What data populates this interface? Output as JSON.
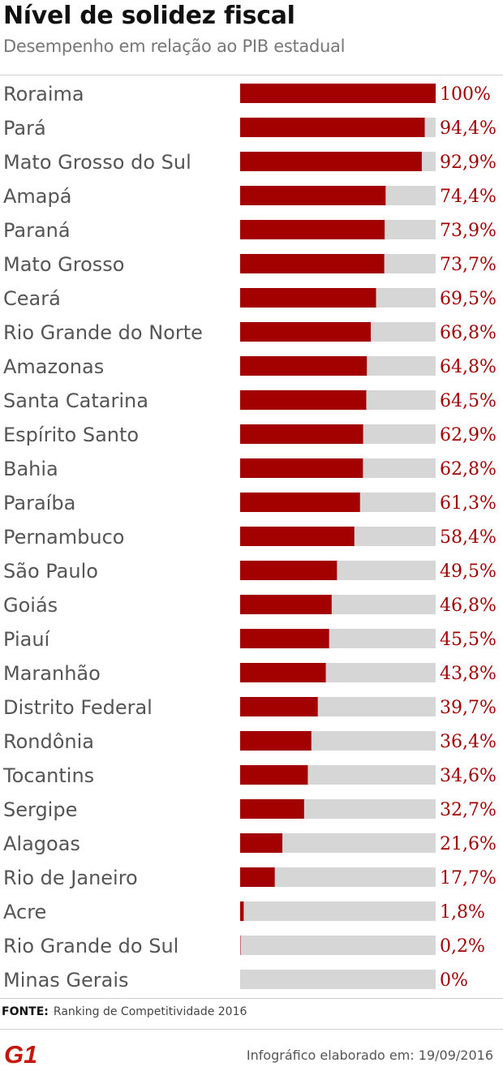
{
  "header": {
    "title": "Nível de solidez fiscal",
    "subtitle": "Desempenho em relação ao PIB estadual"
  },
  "colors": {
    "bar_fill": "#a30000",
    "bar_track": "#d6d6d6",
    "value_text": "#a30000",
    "label_text": "#555555"
  },
  "chart_data": {
    "type": "bar",
    "orientation": "horizontal",
    "title": "Nível de solidez fiscal",
    "subtitle": "Desempenho em relação ao PIB estadual",
    "xlim": [
      0,
      100
    ],
    "grid": false,
    "categories": [
      "Roraima",
      "Pará",
      "Mato Grosso do Sul",
      "Amapá",
      "Paraná",
      "Mato Grosso",
      "Ceará",
      "Rio Grande do Norte",
      "Amazonas",
      "Santa Catarina",
      "Espírito Santo",
      "Bahia",
      "Paraíba",
      "Pernambuco",
      "São Paulo",
      "Goiás",
      "Piauí",
      "Maranhão",
      "Distrito Federal",
      "Rondônia",
      "Tocantins",
      "Sergipe",
      "Alagoas",
      "Rio de Janeiro",
      "Acre",
      "Rio Grande do Sul",
      "Minas Gerais"
    ],
    "values": [
      100,
      94.4,
      92.9,
      74.4,
      73.9,
      73.7,
      69.5,
      66.8,
      64.8,
      64.5,
      62.9,
      62.8,
      61.3,
      58.4,
      49.5,
      46.8,
      45.5,
      43.8,
      39.7,
      36.4,
      34.6,
      32.7,
      21.6,
      17.7,
      1.8,
      0.2,
      0
    ],
    "value_labels": [
      "100%",
      "94,4%",
      "92,9%",
      "74,4%",
      "73,9%",
      "73,7%",
      "69,5%",
      "66,8%",
      "64,8%",
      "64,5%",
      "62,9%",
      "62,8%",
      "61,3%",
      "58,4%",
      "49,5%",
      "46,8%",
      "45,5%",
      "43,8%",
      "39,7%",
      "36,4%",
      "34,6%",
      "32,7%",
      "21,6%",
      "17,7%",
      "1,8%",
      "0,2%",
      "0%"
    ]
  },
  "footer": {
    "source_label": "FONTE:",
    "source_text": "Ranking de Competitividade 2016",
    "logo_text": "G1",
    "credit": "Infográfico elaborado em: 19/09/2016"
  }
}
